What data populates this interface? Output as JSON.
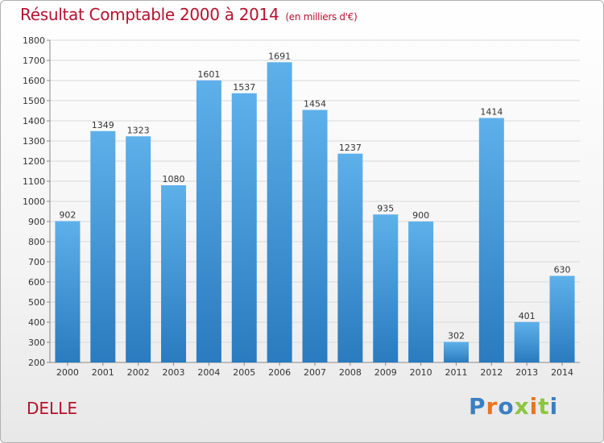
{
  "page": {
    "title": "Résultat Comptable 2000 à 2014",
    "subtitle": "(en milliers d'€)",
    "location": "DELLE",
    "logo_text": "Proxiti"
  },
  "colors": {
    "title": "#b5122e",
    "bar_top": "#5eb0ea",
    "bar_bottom": "#2a7bbf",
    "grid": "#d9d9d9",
    "logo_letters": [
      "#3a7fc2",
      "#e8761e",
      "#3a7fc2",
      "#8cc63f",
      "#e8761e",
      "#8cc63f",
      "#3a7fc2"
    ]
  },
  "chart_data": {
    "type": "bar",
    "title": "Résultat Comptable 2000 à 2014",
    "subtitle": "(en milliers d'€)",
    "categories": [
      "2000",
      "2001",
      "2002",
      "2003",
      "2004",
      "2005",
      "2006",
      "2007",
      "2008",
      "2009",
      "2010",
      "2011",
      "2012",
      "2013",
      "2014"
    ],
    "values": [
      902,
      1349,
      1323,
      1080,
      1601,
      1537,
      1691,
      1454,
      1237,
      935,
      900,
      302,
      1414,
      401,
      630
    ],
    "ylim": [
      200,
      1800
    ],
    "yticks": [
      200,
      300,
      400,
      500,
      600,
      700,
      800,
      900,
      1000,
      1100,
      1200,
      1300,
      1400,
      1500,
      1600,
      1700,
      1800
    ],
    "grid": true,
    "xlabel": "",
    "ylabel": ""
  }
}
